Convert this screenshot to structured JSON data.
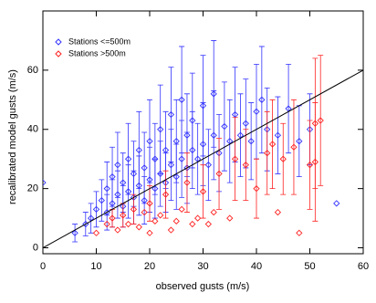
{
  "chart_data": {
    "type": "scatter",
    "x_label": "observed gusts (m/s)",
    "y_label": "recalibrated model gusts (m/s)",
    "xlim": [
      0,
      60
    ],
    "ylim": [
      -2,
      80
    ],
    "xticks": [
      0,
      10,
      20,
      30,
      40,
      50,
      60
    ],
    "yticks": [
      0,
      20,
      40,
      60
    ],
    "legend_position": "upper left",
    "reference_line": {
      "x": [
        0,
        60
      ],
      "y": [
        0,
        60
      ],
      "color": "#000000"
    },
    "series": [
      {
        "name": "Stations <=500m",
        "color": "#3333ff",
        "x": [
          6,
          8,
          9,
          10,
          11,
          12,
          12,
          13,
          13,
          14,
          14,
          15,
          15,
          16,
          16,
          17,
          17,
          18,
          18,
          19,
          19,
          20,
          20,
          21,
          21,
          22,
          22,
          23,
          23,
          24,
          24,
          25,
          25,
          26,
          26,
          27,
          27,
          28,
          28,
          29,
          30,
          30,
          31,
          32,
          32,
          33,
          34,
          35,
          36,
          37,
          38,
          39,
          40,
          41,
          42,
          44,
          46,
          48,
          50,
          55,
          0
        ],
        "values": [
          5,
          8,
          10,
          13,
          16,
          12,
          20,
          15,
          24,
          18,
          28,
          14,
          22,
          19,
          30,
          17,
          25,
          21,
          33,
          16,
          27,
          23,
          36,
          20,
          30,
          25,
          40,
          22,
          33,
          28,
          45,
          24,
          36,
          30,
          50,
          27,
          38,
          33,
          43,
          30,
          35,
          48,
          28,
          38,
          52,
          32,
          41,
          36,
          45,
          38,
          42,
          36,
          46,
          50,
          40,
          38,
          47,
          36,
          40,
          15,
          22
        ],
        "errors": [
          3,
          4,
          5,
          6,
          7,
          6,
          9,
          8,
          10,
          8,
          11,
          7,
          10,
          9,
          12,
          9,
          11,
          10,
          13,
          8,
          12,
          11,
          14,
          10,
          12,
          11,
          15,
          10,
          13,
          12,
          16,
          11,
          14,
          13,
          18,
          12,
          14,
          13,
          16,
          12,
          14,
          17,
          12,
          15,
          18,
          13,
          15,
          14,
          16,
          14,
          15,
          13,
          16,
          18,
          14,
          13,
          15,
          12,
          12,
          0,
          0
        ]
      },
      {
        "name": "Stations >500m",
        "color": "#ff2222",
        "x": [
          10,
          12,
          13,
          14,
          15,
          16,
          17,
          18,
          19,
          20,
          20,
          21,
          22,
          23,
          24,
          25,
          26,
          27,
          28,
          29,
          30,
          31,
          32,
          33,
          35,
          36,
          38,
          40,
          42,
          44,
          45,
          48,
          50,
          51,
          51,
          52,
          43,
          47
        ],
        "values": [
          5,
          8,
          10,
          6,
          11,
          8,
          13,
          7,
          12,
          5,
          15,
          9,
          11,
          18,
          6,
          9,
          13,
          22,
          8,
          10,
          19,
          8,
          12,
          25,
          10,
          30,
          28,
          20,
          32,
          12,
          30,
          5,
          28,
          29,
          42,
          43,
          35,
          34
        ],
        "errors": [
          0,
          0,
          3,
          0,
          4,
          0,
          5,
          0,
          0,
          0,
          6,
          0,
          0,
          8,
          0,
          0,
          0,
          10,
          0,
          0,
          9,
          0,
          0,
          12,
          0,
          14,
          12,
          10,
          14,
          0,
          12,
          0,
          15,
          20,
          22,
          22,
          15,
          16
        ]
      }
    ]
  }
}
